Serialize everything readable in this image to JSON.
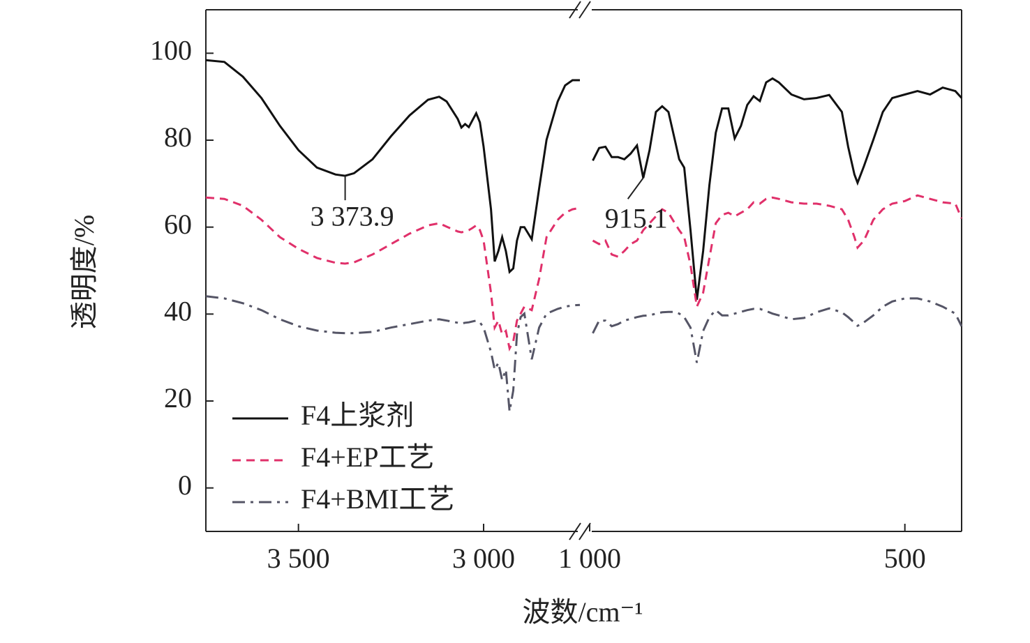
{
  "chart_data": {
    "type": "line",
    "x_label": "波数/cm⁻¹",
    "y_label": "透明度/%",
    "x_segments": [
      {
        "xlim": [
          3750,
          2740
        ],
        "xticks": [
          {
            "value": 3500,
            "label": "3 500"
          },
          {
            "value": 3000,
            "label": "3 000"
          }
        ]
      },
      {
        "xlim": [
          1000,
          410
        ],
        "xticks": [
          {
            "value": 1000,
            "label": "1 000"
          },
          500
        ]
      }
    ],
    "ylim": [
      -10,
      110
    ],
    "yticks": [
      0,
      20,
      40,
      60,
      80,
      100
    ],
    "legend": "lower left",
    "x": [
      3750,
      3700,
      3650,
      3600,
      3550,
      3500,
      3450,
      3400,
      3374,
      3350,
      3300,
      3250,
      3200,
      3150,
      3120,
      3100,
      3070,
      3060,
      3050,
      3040,
      3030,
      3020,
      3010,
      3000,
      2980,
      2970,
      2960,
      2950,
      2940,
      2930,
      2920,
      2910,
      2900,
      2890,
      2870,
      2850,
      2830,
      2800,
      2780,
      2760,
      2740,
      null,
      995,
      985,
      975,
      965,
      955,
      945,
      935,
      925,
      915,
      905,
      895,
      885,
      875,
      865,
      858,
      850,
      840,
      830,
      820,
      810,
      800,
      790,
      780,
      770,
      760,
      750,
      740,
      730,
      720,
      710,
      700,
      680,
      660,
      640,
      620,
      600,
      590,
      580,
      575,
      565,
      550,
      535,
      520,
      500,
      480,
      460,
      440,
      420,
      410
    ],
    "series": [
      {
        "name": "F4上浆剂",
        "color": "#111111",
        "style": "solid",
        "values": [
          98.4,
          98,
          94.6,
          89.7,
          83.3,
          77.7,
          73.7,
          72.1,
          71.8,
          72.4,
          75.6,
          80.9,
          85.7,
          89.3,
          90,
          88.9,
          84.9,
          82.9,
          83.7,
          83,
          84.6,
          86.2,
          84.1,
          78.5,
          64.1,
          52.1,
          54.5,
          57.7,
          54.5,
          49.7,
          50.5,
          56.9,
          60,
          60,
          57.2,
          68.9,
          80.1,
          88.9,
          92.6,
          93.8,
          93.8,
          null,
          75.3,
          78.2,
          78.5,
          76.1,
          76.1,
          75.6,
          76.9,
          78.8,
          71.3,
          77.7,
          86.5,
          87.8,
          86.5,
          80.1,
          75.6,
          73.7,
          59.3,
          43.3,
          54.5,
          69.7,
          81.7,
          87.3,
          87.3,
          80.4,
          83.3,
          88.1,
          90.1,
          89,
          93.3,
          94.2,
          93.3,
          90.5,
          89.4,
          89.7,
          90.4,
          86.5,
          78.5,
          72.1,
          70.2,
          74,
          80.1,
          86.5,
          89.7,
          90.5,
          91.3,
          90.5,
          92.1,
          91.3,
          89.7
        ]
      },
      {
        "name": "F4+EP工艺",
        "color": "#e0306a",
        "style": "dashed",
        "values": [
          66.8,
          66.5,
          64.9,
          61.7,
          57.7,
          55,
          52.9,
          51.8,
          51.6,
          51.9,
          53.7,
          56.1,
          58.5,
          60.4,
          60.9,
          60.1,
          59,
          58.8,
          59,
          59.3,
          59.8,
          60.4,
          59.3,
          56.9,
          44.9,
          36.9,
          38.5,
          35.3,
          36.1,
          32.1,
          33.7,
          38.5,
          40.1,
          41.7,
          40.9,
          48.1,
          57.7,
          61.7,
          63.3,
          64.1,
          64.4,
          null,
          56.9,
          56.1,
          56.9,
          53.7,
          53.2,
          54.5,
          56.1,
          56.9,
          59.3,
          60.9,
          62.5,
          64.1,
          63.3,
          60.9,
          59.3,
          57.7,
          51.3,
          41.7,
          44.9,
          52.9,
          60.9,
          62.8,
          63.3,
          62.5,
          63.3,
          64.1,
          65.7,
          65.4,
          66.5,
          66.8,
          66.5,
          65.7,
          65.4,
          65.4,
          64.9,
          64.1,
          61.7,
          57.7,
          55.3,
          56.9,
          61.7,
          64.1,
          65.4,
          66,
          67.3,
          66.5,
          65.7,
          65.4,
          62
        ]
      },
      {
        "name": "F4+BMI工艺",
        "color": "#555566",
        "style": "dashdot",
        "values": [
          44.1,
          43.6,
          42.5,
          40.9,
          38.8,
          37.2,
          36.2,
          35.7,
          35.6,
          35.6,
          35.9,
          36.9,
          37.7,
          38.5,
          38.8,
          38.5,
          38,
          37.8,
          38,
          38.1,
          38.3,
          38.5,
          38.1,
          36.9,
          31.3,
          27.2,
          28.8,
          24.8,
          27.2,
          17.6,
          22.4,
          35.3,
          39.3,
          40.1,
          29.6,
          36.9,
          40.1,
          41.2,
          41.7,
          42,
          42.1,
          null,
          35.6,
          38.5,
          38.5,
          37.2,
          37.7,
          38.5,
          38.9,
          39.3,
          39.6,
          39.7,
          40.1,
          40.4,
          40.5,
          40.5,
          40.1,
          39.3,
          36.9,
          28.8,
          36.1,
          39.3,
          40.9,
          39.7,
          39.7,
          40.1,
          40.5,
          40.9,
          41.2,
          41.2,
          40.7,
          40.1,
          39.7,
          38.8,
          39.1,
          40.4,
          41.3,
          40.4,
          39.3,
          38,
          37.3,
          38.1,
          39.7,
          41.7,
          42.9,
          43.6,
          43.6,
          42.9,
          41.7,
          40.1,
          37.2
        ]
      }
    ],
    "annotations": [
      {
        "label": "3 373.9",
        "x": 3373.9
      },
      {
        "label": "915.1",
        "x": 915.1
      }
    ]
  }
}
